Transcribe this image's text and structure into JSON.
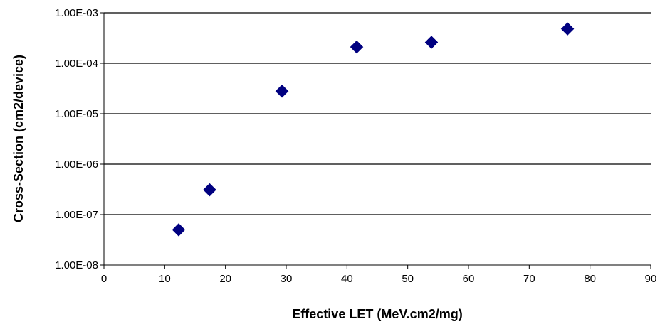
{
  "chart_data": {
    "type": "scatter",
    "title": "",
    "xlabel": "Effective LET (MeV.cm2/mg)",
    "ylabel": "Cross-Section (cm2/device)",
    "xlim": [
      0,
      90
    ],
    "ylim": [
      1e-08,
      0.001
    ],
    "y_scale": "log",
    "x_ticks": [
      "0",
      "10",
      "20",
      "30",
      "40",
      "50",
      "60",
      "70",
      "80",
      "90"
    ],
    "y_ticks": [
      "1.00E-08",
      "1.00E-07",
      "1.00E-06",
      "1.00E-05",
      "1.00E-04",
      "1.00E-03"
    ],
    "grid": "horizontal major gridlines",
    "legend": "none",
    "marker": "diamond",
    "marker_color": "#000080",
    "series": [
      {
        "points": [
          {
            "x": 12.3,
            "y": 5e-08
          },
          {
            "x": 17.4,
            "y": 3.1e-07
          },
          {
            "x": 29.3,
            "y": 2.8e-05
          },
          {
            "x": 41.6,
            "y": 0.00021
          },
          {
            "x": 53.9,
            "y": 0.00026
          },
          {
            "x": 76.3,
            "y": 0.00048
          }
        ]
      }
    ]
  }
}
